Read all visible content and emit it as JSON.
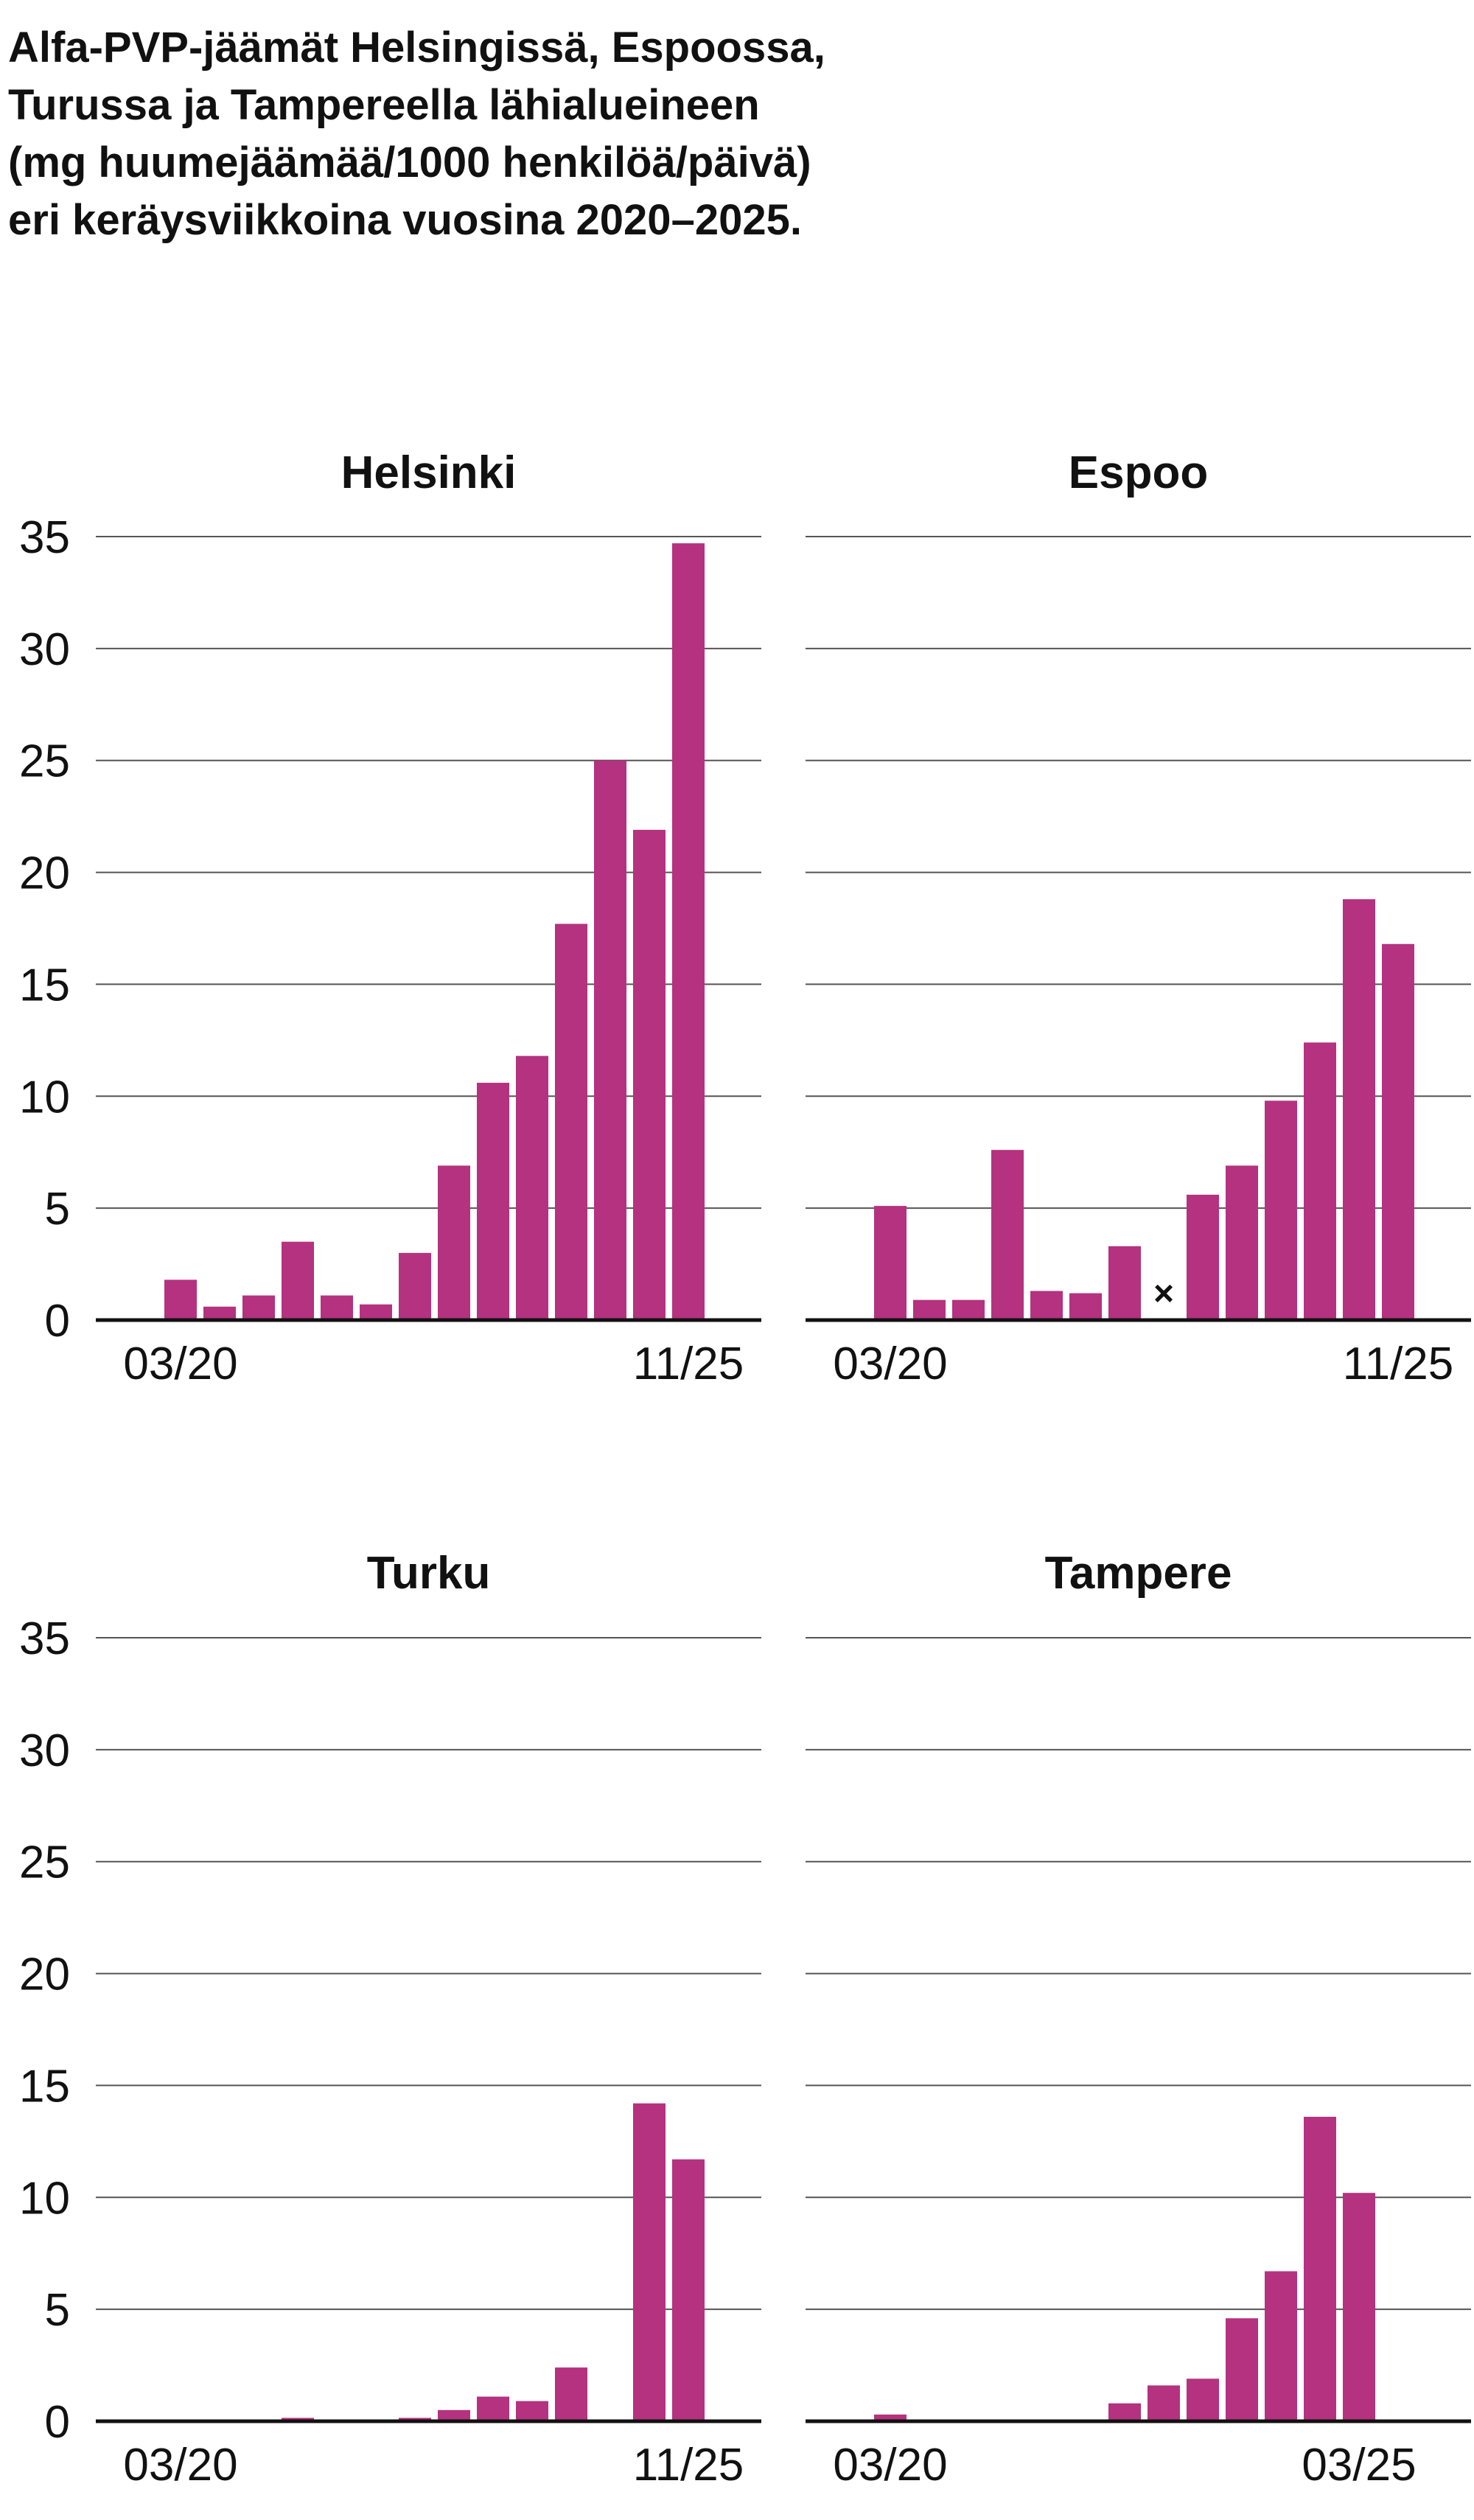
{
  "title": [
    "Alfa-PVP-jäämät Helsingissä, Espoossa,",
    "Turussa ja Tampereella lähialueineen",
    "(mg huumejäämää/1000 henkilöä/päivä)",
    "eri keräysviikkoina vuosina 2020–2025."
  ],
  "chart_data": [
    {
      "type": "bar",
      "title": "Helsinki",
      "color": "#b4327f",
      "categories": [
        "03/20",
        null,
        null,
        null,
        null,
        null,
        null,
        null,
        null,
        null,
        null,
        null,
        null,
        "11/25"
      ],
      "values": [
        1.8,
        0.6,
        1.1,
        3.5,
        1.1,
        0.7,
        3.0,
        6.9,
        10.6,
        11.8,
        17.7,
        25.0,
        21.9,
        34.7
      ],
      "ylim": [
        0,
        35
      ],
      "yticks": [
        0,
        5,
        10,
        15,
        20,
        25,
        30,
        35
      ],
      "grid": true
    },
    {
      "type": "bar",
      "title": "Espoo",
      "color": "#b4327f",
      "missing_label": "×",
      "categories": [
        "03/20",
        null,
        null,
        null,
        null,
        null,
        null,
        null,
        null,
        null,
        null,
        null,
        null,
        "11/25"
      ],
      "values": [
        5.1,
        0.9,
        0.9,
        7.6,
        1.3,
        1.2,
        3.3,
        null,
        5.6,
        6.9,
        9.8,
        12.4,
        18.8,
        16.8
      ],
      "ylim": [
        0,
        35
      ],
      "yticks": [
        0,
        5,
        10,
        15,
        20,
        25,
        30,
        35
      ],
      "grid": true
    },
    {
      "type": "bar",
      "title": "Turku",
      "color": "#b4327f",
      "categories": [
        "03/20",
        null,
        null,
        null,
        null,
        null,
        null,
        null,
        null,
        null,
        null,
        null,
        null,
        "11/25"
      ],
      "values": [
        null,
        null,
        null,
        0.15,
        null,
        null,
        0.15,
        0.5,
        1.1,
        0.9,
        2.4,
        null,
        14.2,
        11.7
      ],
      "ylim": [
        0,
        35
      ],
      "yticks": [
        0,
        5,
        10,
        15,
        20,
        25,
        30,
        35
      ],
      "grid": true
    },
    {
      "type": "bar",
      "title": "Tampere",
      "color": "#b4327f",
      "categories": [
        "03/20",
        null,
        null,
        null,
        null,
        null,
        null,
        null,
        null,
        null,
        null,
        null,
        "03/25",
        null
      ],
      "values": [
        0.3,
        null,
        null,
        null,
        null,
        null,
        0.8,
        1.6,
        1.9,
        4.6,
        6.7,
        13.6,
        10.2,
        null
      ],
      "ylim": [
        0,
        35
      ],
      "yticks": [
        0,
        5,
        10,
        15,
        20,
        25,
        30,
        35
      ],
      "grid": true
    }
  ]
}
